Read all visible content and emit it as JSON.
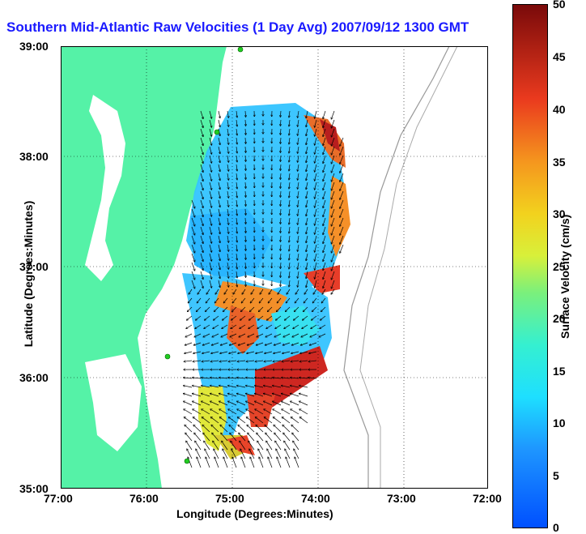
{
  "title": "Southern Mid-Atlantic Raw Velocities (1 Day Avg) 2007/09/12 1300 GMT",
  "axes": {
    "xlabel": "Longitude (Degrees:Minutes)",
    "ylabel": "Latitude (Degrees:Minutes)",
    "x_ticks": [
      "77:00",
      "76:00",
      "75:00",
      "74:00",
      "73:00",
      "72:00"
    ],
    "y_ticks": [
      "39:00",
      "38:00",
      "37:00",
      "36:00",
      "35:00"
    ]
  },
  "colorbar": {
    "label": "Surface Velocity (cm/s)",
    "ticks": [
      "50",
      "45",
      "40",
      "35",
      "30",
      "25",
      "20",
      "15",
      "10",
      "5",
      "0"
    ],
    "min": 0,
    "max": 50
  },
  "colors": {
    "land": "#55f2a7",
    "water": "#ffffff",
    "title": "#1a1aff",
    "station": "#22cc22"
  }
}
